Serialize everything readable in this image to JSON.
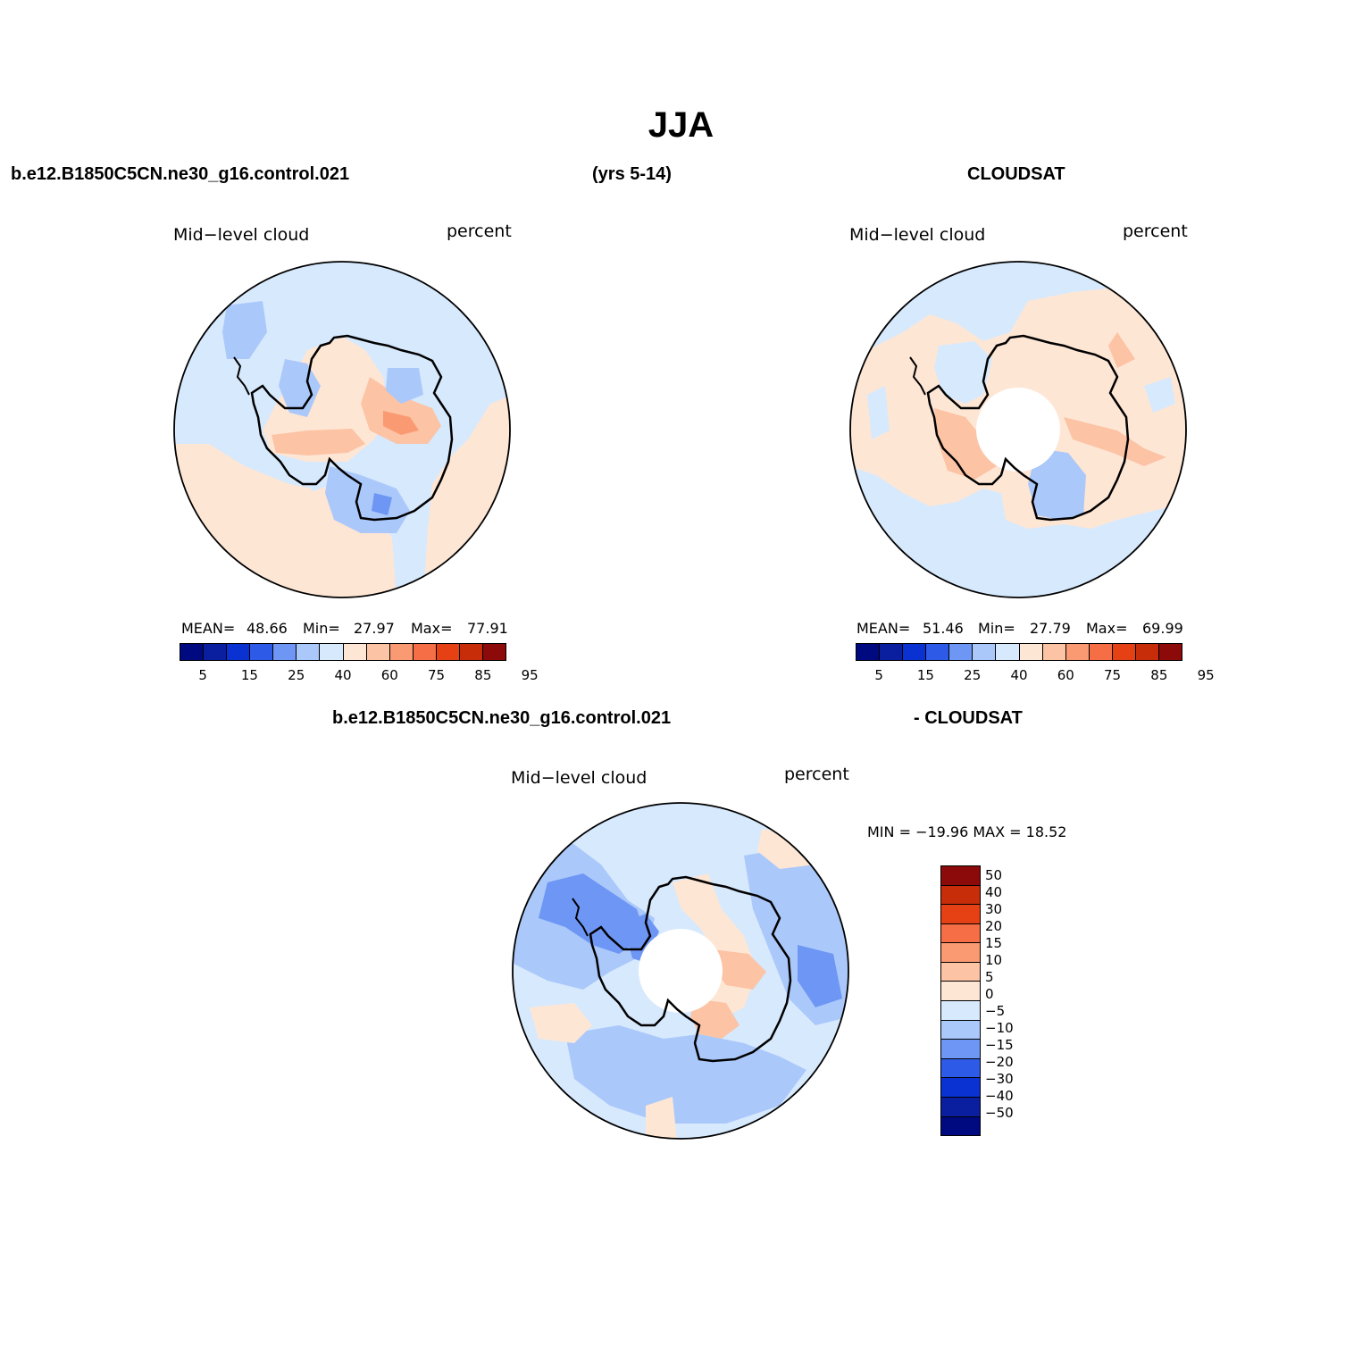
{
  "title": "JJA",
  "headers": {
    "left_case": "b.e12.B1850C5CN.ne30_g16.control.021",
    "years": "(yrs 5-14)",
    "right_obs": "CLOUDSAT",
    "diff_case": "b.e12.B1850C5CN.ne30_g16.control.021",
    "diff_obs": "- CLOUDSAT"
  },
  "panels": {
    "model": {
      "field": "Mid−level cloud",
      "units": "percent",
      "mean_label": "MEAN=",
      "mean": "48.66",
      "min_label": "Min=",
      "min": "27.97",
      "max_label": "Max=",
      "max": "77.91"
    },
    "obs": {
      "field": "Mid−level cloud",
      "units": "percent",
      "mean_label": "MEAN=",
      "mean": "51.46",
      "min_label": "Min=",
      "min": "27.79",
      "max_label": "Max=",
      "max": "69.99"
    },
    "diff": {
      "field": "Mid−level cloud",
      "units": "percent",
      "minmax": "MIN = −19.96 MAX =  18.52"
    }
  },
  "colorbar_abs": {
    "colors": [
      "#000a80",
      "#0a1ea0",
      "#0a32d2",
      "#2d5ae6",
      "#6e96f5",
      "#aac8fa",
      "#d7e9fd",
      "#fee6d5",
      "#fcc3a5",
      "#fa9a73",
      "#f56e46",
      "#e64114",
      "#c82d0a",
      "#8c0a0a"
    ],
    "ticks": [
      "5",
      "15",
      "25",
      "40",
      "60",
      "75",
      "85",
      "95"
    ]
  },
  "colorbar_diff": {
    "colors": [
      "#8c0a0a",
      "#c82d0a",
      "#e64114",
      "#f56e46",
      "#fa9a73",
      "#fcc3a5",
      "#fee6d5",
      "#d7e9fd",
      "#aac8fa",
      "#6e96f5",
      "#2d5ae6",
      "#0a32d2",
      "#0a1ea0",
      "#000a80"
    ],
    "ticks": [
      "50",
      "40",
      "30",
      "20",
      "15",
      "10",
      "5",
      "0",
      "−5",
      "−10",
      "−15",
      "−20",
      "−30",
      "−40",
      "−50"
    ]
  },
  "palette": {
    "light_blue": "#d7e9fd",
    "mid_blue": "#aac8fa",
    "blue": "#6e96f5",
    "light_orange": "#fee6d5",
    "mid_orange": "#fcc3a5",
    "orange": "#fa9a73"
  }
}
